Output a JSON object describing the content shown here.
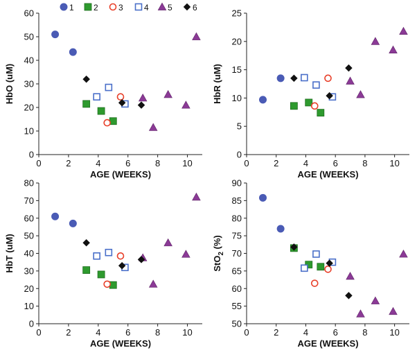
{
  "legend": {
    "entries": [
      {
        "label": "1",
        "marker": "circle-filled",
        "color": "#4a5bb5"
      },
      {
        "label": "2",
        "marker": "square-filled",
        "color": "#2e9a2e"
      },
      {
        "label": "3",
        "marker": "circle-open",
        "color": "#e8402a"
      },
      {
        "label": "4",
        "marker": "square-open",
        "color": "#4a6fc9"
      },
      {
        "label": "5",
        "marker": "triangle-filled",
        "color": "#8b3a96"
      },
      {
        "label": "6",
        "marker": "diamond-filled",
        "color": "#111111"
      }
    ]
  },
  "chart_data": [
    {
      "type": "scatter",
      "id": "hbo",
      "ylabel": "HbO (uM)",
      "xlabel": "AGE (WEEKS)",
      "xlim": [
        0,
        11
      ],
      "ylim": [
        0,
        60
      ],
      "xticks": [
        0,
        2,
        4,
        6,
        8,
        10
      ],
      "yticks": [
        0,
        10,
        20,
        30,
        40,
        50,
        60
      ],
      "series": [
        {
          "name": "1",
          "points": [
            [
              1.1,
              51
            ],
            [
              2.3,
              43.5
            ]
          ]
        },
        {
          "name": "2",
          "points": [
            [
              3.2,
              21.5
            ],
            [
              4.2,
              18.5
            ],
            [
              5.0,
              14.2
            ]
          ]
        },
        {
          "name": "3",
          "points": [
            [
              4.6,
              13.5
            ],
            [
              5.5,
              24.5
            ]
          ]
        },
        {
          "name": "4",
          "points": [
            [
              3.9,
              24.5
            ],
            [
              4.7,
              28.5
            ],
            [
              5.8,
              21.5
            ]
          ]
        },
        {
          "name": "5",
          "points": [
            [
              7.0,
              24
            ],
            [
              7.7,
              11.5
            ],
            [
              8.7,
              25.5
            ],
            [
              9.9,
              21
            ],
            [
              10.6,
              50
            ]
          ]
        },
        {
          "name": "6",
          "points": [
            [
              3.2,
              32
            ],
            [
              5.6,
              22
            ],
            [
              6.9,
              21
            ]
          ]
        }
      ]
    },
    {
      "type": "scatter",
      "id": "hbr",
      "ylabel": "HbR (uM)",
      "xlabel": "AGE (WEEKS)",
      "xlim": [
        0,
        11
      ],
      "ylim": [
        0,
        25
      ],
      "xticks": [
        0,
        2,
        4,
        6,
        8,
        10
      ],
      "yticks": [
        0,
        5,
        10,
        15,
        20,
        25
      ],
      "series": [
        {
          "name": "1",
          "points": [
            [
              1.1,
              9.7
            ],
            [
              2.3,
              13.5
            ]
          ]
        },
        {
          "name": "2",
          "points": [
            [
              3.2,
              8.6
            ],
            [
              4.2,
              9.2
            ],
            [
              5.0,
              7.4
            ]
          ]
        },
        {
          "name": "3",
          "points": [
            [
              4.6,
              8.6
            ],
            [
              5.5,
              13.5
            ]
          ]
        },
        {
          "name": "4",
          "points": [
            [
              3.9,
              13.6
            ],
            [
              4.7,
              12.3
            ],
            [
              5.8,
              10.2
            ]
          ]
        },
        {
          "name": "5",
          "points": [
            [
              7.0,
              13
            ],
            [
              7.7,
              10.6
            ],
            [
              8.7,
              20
            ],
            [
              9.9,
              18.5
            ],
            [
              10.6,
              21.8
            ]
          ]
        },
        {
          "name": "6",
          "points": [
            [
              3.2,
              13.5
            ],
            [
              5.6,
              10.4
            ],
            [
              6.9,
              15.3
            ]
          ]
        }
      ]
    },
    {
      "type": "scatter",
      "id": "hbt",
      "ylabel": "HbT (uM)",
      "xlabel": "AGE (WEEKS)",
      "xlim": [
        0,
        11
      ],
      "ylim": [
        0,
        80
      ],
      "xticks": [
        0,
        2,
        4,
        6,
        8,
        10
      ],
      "yticks": [
        0,
        10,
        20,
        30,
        40,
        50,
        60,
        70,
        80
      ],
      "series": [
        {
          "name": "1",
          "points": [
            [
              1.1,
              61
            ],
            [
              2.3,
              57
            ]
          ]
        },
        {
          "name": "2",
          "points": [
            [
              3.2,
              30.5
            ],
            [
              4.2,
              28
            ],
            [
              5.0,
              22
            ]
          ]
        },
        {
          "name": "3",
          "points": [
            [
              4.6,
              22.5
            ],
            [
              5.5,
              38.5
            ]
          ]
        },
        {
          "name": "4",
          "points": [
            [
              3.9,
              38.5
            ],
            [
              4.7,
              40.5
            ],
            [
              5.8,
              32
            ]
          ]
        },
        {
          "name": "5",
          "points": [
            [
              7.0,
              37.5
            ],
            [
              7.7,
              22.5
            ],
            [
              8.7,
              46
            ],
            [
              9.9,
              39.5
            ],
            [
              10.6,
              72
            ]
          ]
        },
        {
          "name": "6",
          "points": [
            [
              3.2,
              46
            ],
            [
              5.6,
              33
            ],
            [
              6.9,
              36.5
            ]
          ]
        }
      ]
    },
    {
      "type": "scatter",
      "id": "sto2",
      "ylabel": "StO",
      "ylabel_subscript": "2",
      "ylabel_suffix": " (%)",
      "xlabel": "AGE (WEEKS)",
      "xlim": [
        0,
        11
      ],
      "ylim": [
        50,
        90
      ],
      "xticks": [
        0,
        2,
        4,
        6,
        8,
        10
      ],
      "yticks": [
        50,
        55,
        60,
        65,
        70,
        75,
        80,
        85,
        90
      ],
      "series": [
        {
          "name": "1",
          "points": [
            [
              1.1,
              85.8
            ],
            [
              2.3,
              77
            ]
          ]
        },
        {
          "name": "2",
          "points": [
            [
              3.2,
              71.5
            ],
            [
              4.2,
              66.8
            ],
            [
              5.0,
              66.2
            ]
          ]
        },
        {
          "name": "3",
          "points": [
            [
              4.6,
              61.5
            ],
            [
              5.5,
              65.5
            ]
          ]
        },
        {
          "name": "4",
          "points": [
            [
              3.9,
              65.8
            ],
            [
              4.7,
              69.8
            ],
            [
              5.8,
              67.5
            ]
          ]
        },
        {
          "name": "5",
          "points": [
            [
              7.0,
              63.5
            ],
            [
              7.7,
              52.8
            ],
            [
              8.7,
              56.5
            ],
            [
              9.9,
              53.5
            ],
            [
              10.6,
              69.8
            ]
          ]
        },
        {
          "name": "6",
          "points": [
            [
              3.2,
              71.8
            ],
            [
              5.6,
              67.2
            ],
            [
              6.9,
              58
            ]
          ]
        }
      ]
    }
  ]
}
